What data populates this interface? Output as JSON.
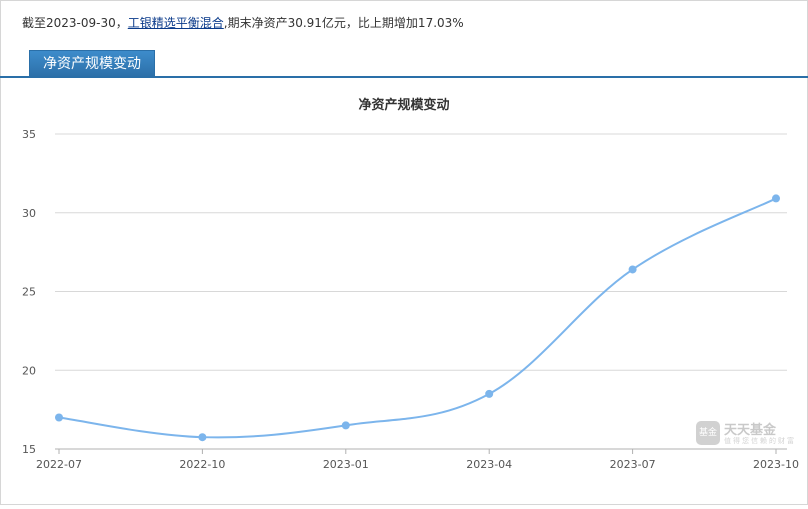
{
  "summary": {
    "prefix": "截至2023-09-30，",
    "fund_name": "工银精选平衡混合",
    "suffix": ",期末净资产30.91亿元，比上期增加17.03%"
  },
  "tabs": [
    {
      "label": "净资产规模变动"
    }
  ],
  "watermark": {
    "logo_text": "基金",
    "title": "天天基金",
    "subtitle": "值得您信赖的财富"
  },
  "colors": {
    "line": "#7cb5ec",
    "tab": "#2c6fa8",
    "grid": "#d8d8d8"
  },
  "chart_data": {
    "type": "line",
    "title": "净资产规模变动",
    "xlabel": "",
    "ylabel": "",
    "categories": [
      "2022-07",
      "2022-10",
      "2023-01",
      "2023-04",
      "2023-07",
      "2023-10"
    ],
    "series": [
      {
        "values": [
          17.0,
          15.75,
          16.5,
          18.5,
          26.4,
          30.91
        ]
      }
    ],
    "ylim": [
      15,
      35
    ],
    "yticks": [
      15,
      20,
      25,
      30,
      35
    ],
    "grid": true,
    "legend": "none"
  }
}
